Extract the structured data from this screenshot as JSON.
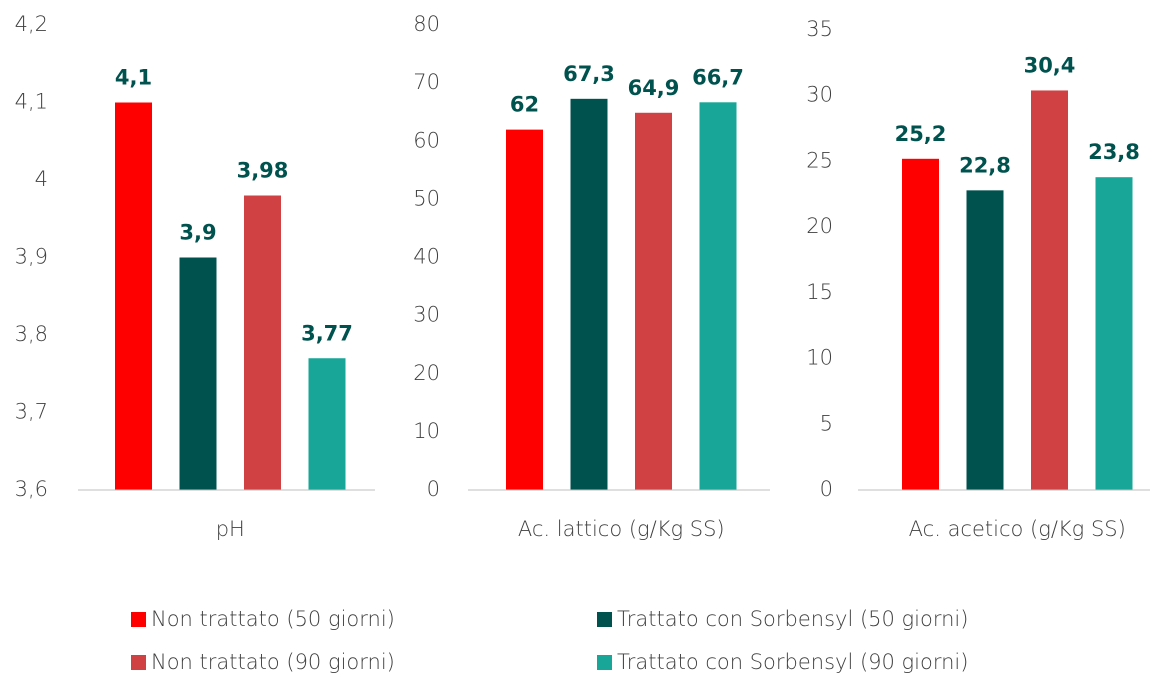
{
  "legend": [
    {
      "name": "Non trattato (50 giorni)",
      "color": "#ff0000"
    },
    {
      "name": "Trattato con Sorbensyl (50 giorni)",
      "color": "#00524f"
    },
    {
      "name": "Non trattato (90 giorni)",
      "color": "#d04143"
    },
    {
      "name": "Trattato con Sorbensyl (90 giorni)",
      "color": "#17a697"
    }
  ],
  "chart_data": [
    {
      "type": "bar",
      "category": "pH",
      "values": [
        4.1,
        3.9,
        3.98,
        3.77
      ],
      "value_labels": [
        "4,1",
        "3,9",
        "3,98",
        "3,77"
      ],
      "ylim": [
        3.6,
        4.2
      ],
      "yticks": [
        {
          "value": 3.6,
          "label": "3,6"
        },
        {
          "value": 3.7,
          "label": "3,7"
        },
        {
          "value": 3.8,
          "label": "3,8"
        },
        {
          "value": 3.9,
          "label": "3,9"
        },
        4,
        {
          "value": 4.1,
          "label": "4,1"
        },
        {
          "value": 4.2,
          "label": "4,2"
        }
      ]
    },
    {
      "type": "bar",
      "category": "Ac. lattico (g/Kg SS)",
      "values": [
        62,
        67.3,
        64.9,
        66.7
      ],
      "value_labels": [
        "62",
        "67,3",
        "64,9",
        "66,7"
      ],
      "ylim": [
        0,
        80
      ],
      "yticks": [
        0,
        10,
        20,
        30,
        40,
        50,
        60,
        70,
        80
      ]
    },
    {
      "type": "bar",
      "category": "Ac. acetico (g/Kg SS)",
      "values": [
        25.2,
        22.8,
        30.4,
        23.8
      ],
      "value_labels": [
        "25,2",
        "22,8",
        "30,4",
        "23,8"
      ],
      "ylim": [
        0,
        35
      ],
      "yticks": [
        0,
        5,
        10,
        15,
        20,
        25,
        30,
        35
      ]
    }
  ]
}
